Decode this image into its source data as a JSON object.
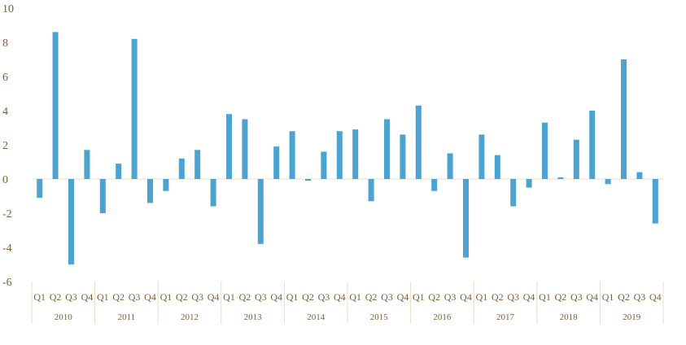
{
  "chart_data": {
    "type": "bar",
    "title": "",
    "xlabel": "",
    "ylabel": "",
    "ylim": [
      -6,
      10
    ],
    "yticks": [
      -6,
      -4,
      -2,
      0,
      2,
      4,
      6,
      8,
      10
    ],
    "ytick_labels": [
      "-6",
      "-4",
      "-2",
      "0",
      "2",
      "4",
      "6",
      "8",
      "10"
    ],
    "grid": false,
    "legend": "none",
    "bar_color": "#4ba3d2",
    "axis_color": "#e8dcc8",
    "text_color": "#7a5f3c",
    "quarters": [
      "Q1",
      "Q2",
      "Q3",
      "Q4"
    ],
    "years": [
      "2010",
      "2011",
      "2012",
      "2013",
      "2014",
      "2015",
      "2016",
      "2017",
      "2018",
      "2019"
    ],
    "values": [
      -1.1,
      8.6,
      -5.0,
      1.7,
      -2.0,
      0.9,
      8.2,
      -1.4,
      -0.7,
      1.2,
      1.7,
      -1.6,
      3.8,
      3.5,
      -3.8,
      1.9,
      2.8,
      -0.1,
      1.6,
      2.8,
      2.9,
      -1.3,
      3.5,
      2.6,
      4.3,
      -0.7,
      1.5,
      -4.6,
      2.6,
      1.4,
      -1.6,
      -0.5,
      3.3,
      0.1,
      2.3,
      4.0,
      -0.3,
      7.0,
      0.4,
      -2.6
    ]
  }
}
